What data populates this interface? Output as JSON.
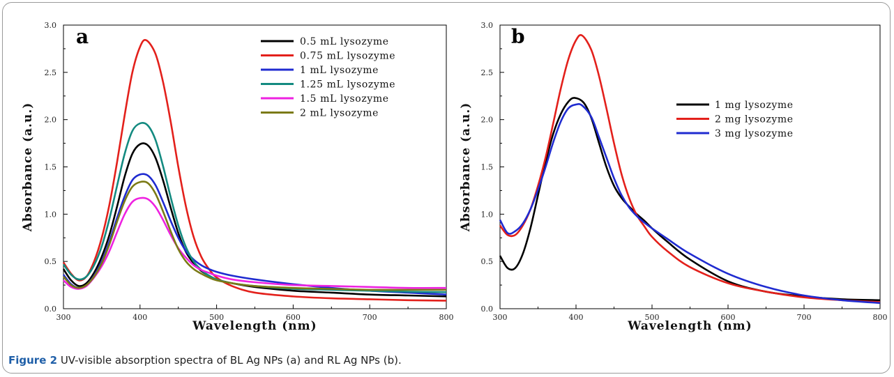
{
  "caption": {
    "label": "Figure 2",
    "text": " UV-visible absorption spectra of BL Ag NPs (a) and RL Ag NPs (b)."
  },
  "chart_data": [
    {
      "type": "line",
      "panel_label": "a",
      "xlabel": "Wavelength (nm)",
      "ylabel": "Absorbance (a.u.)",
      "xlim": [
        300,
        800
      ],
      "ylim": [
        0,
        3.0
      ],
      "xticks": [
        300,
        400,
        500,
        600,
        700,
        800
      ],
      "yticks": [
        0.0,
        0.5,
        1.0,
        1.5,
        2.0,
        2.5,
        3.0
      ],
      "legend_position": "top-right",
      "series": [
        {
          "name": "0.5 mL lysozyme",
          "color": "#000000",
          "x": [
            300,
            310,
            320,
            330,
            340,
            350,
            360,
            370,
            380,
            390,
            400,
            410,
            420,
            430,
            440,
            450,
            460,
            470,
            480,
            490,
            500,
            520,
            550,
            600,
            650,
            700,
            750,
            800
          ],
          "y": [
            0.42,
            0.3,
            0.24,
            0.27,
            0.38,
            0.55,
            0.78,
            1.08,
            1.4,
            1.64,
            1.74,
            1.73,
            1.6,
            1.36,
            1.07,
            0.8,
            0.6,
            0.48,
            0.4,
            0.35,
            0.31,
            0.27,
            0.23,
            0.19,
            0.17,
            0.15,
            0.14,
            0.13
          ]
        },
        {
          "name": "0.75 mL lysozyme",
          "color": "#e3201b",
          "x": [
            300,
            310,
            320,
            330,
            340,
            350,
            360,
            370,
            380,
            390,
            400,
            408,
            420,
            430,
            440,
            450,
            460,
            470,
            480,
            490,
            500,
            520,
            550,
            600,
            650,
            700,
            750,
            800
          ],
          "y": [
            0.49,
            0.37,
            0.3,
            0.34,
            0.5,
            0.75,
            1.1,
            1.55,
            2.05,
            2.5,
            2.77,
            2.84,
            2.7,
            2.4,
            1.98,
            1.5,
            1.08,
            0.76,
            0.55,
            0.42,
            0.33,
            0.24,
            0.17,
            0.13,
            0.11,
            0.1,
            0.09,
            0.085
          ]
        },
        {
          "name": "1 mL lysozyme",
          "color": "#1f2bd0",
          "x": [
            300,
            310,
            320,
            330,
            340,
            350,
            360,
            370,
            380,
            390,
            400,
            410,
            420,
            430,
            440,
            450,
            460,
            470,
            480,
            490,
            500,
            520,
            550,
            600,
            650,
            700,
            750,
            800
          ],
          "y": [
            0.36,
            0.26,
            0.22,
            0.25,
            0.35,
            0.5,
            0.71,
            0.96,
            1.19,
            1.36,
            1.42,
            1.41,
            1.31,
            1.13,
            0.93,
            0.75,
            0.61,
            0.52,
            0.46,
            0.42,
            0.39,
            0.35,
            0.31,
            0.26,
            0.22,
            0.19,
            0.17,
            0.15
          ]
        },
        {
          "name": "1.25 mL lysozyme",
          "color": "#138a80",
          "x": [
            300,
            310,
            320,
            330,
            340,
            350,
            360,
            370,
            380,
            390,
            400,
            410,
            420,
            430,
            440,
            450,
            460,
            470,
            480,
            490,
            500,
            520,
            550,
            600,
            650,
            700,
            750,
            800
          ],
          "y": [
            0.47,
            0.36,
            0.31,
            0.34,
            0.46,
            0.66,
            0.95,
            1.3,
            1.64,
            1.88,
            1.96,
            1.94,
            1.79,
            1.51,
            1.18,
            0.88,
            0.65,
            0.5,
            0.41,
            0.35,
            0.31,
            0.27,
            0.24,
            0.21,
            0.2,
            0.19,
            0.18,
            0.175
          ]
        },
        {
          "name": "1.5 mL lysozyme",
          "color": "#ee22e0",
          "x": [
            300,
            310,
            320,
            330,
            340,
            350,
            360,
            370,
            380,
            390,
            400,
            410,
            420,
            430,
            440,
            450,
            460,
            470,
            480,
            490,
            500,
            520,
            550,
            600,
            650,
            700,
            750,
            800
          ],
          "y": [
            0.3,
            0.23,
            0.21,
            0.24,
            0.33,
            0.45,
            0.61,
            0.81,
            1.0,
            1.13,
            1.17,
            1.16,
            1.08,
            0.94,
            0.78,
            0.64,
            0.54,
            0.46,
            0.41,
            0.38,
            0.35,
            0.31,
            0.28,
            0.25,
            0.24,
            0.23,
            0.22,
            0.22
          ]
        },
        {
          "name": "2 mL lysozyme",
          "color": "#7b7a16",
          "x": [
            300,
            310,
            320,
            330,
            340,
            350,
            360,
            370,
            380,
            390,
            400,
            410,
            420,
            430,
            440,
            450,
            460,
            470,
            480,
            490,
            500,
            520,
            550,
            600,
            650,
            700,
            750,
            800
          ],
          "y": [
            0.34,
            0.25,
            0.22,
            0.25,
            0.34,
            0.48,
            0.68,
            0.92,
            1.14,
            1.29,
            1.34,
            1.33,
            1.22,
            1.03,
            0.82,
            0.63,
            0.5,
            0.42,
            0.37,
            0.33,
            0.3,
            0.27,
            0.24,
            0.22,
            0.21,
            0.2,
            0.2,
            0.2
          ]
        }
      ]
    },
    {
      "type": "line",
      "panel_label": "b",
      "xlabel": "Wavelength (nm)",
      "ylabel": "Absorbance (a.u.)",
      "xlim": [
        300,
        800
      ],
      "ylim": [
        0,
        3.0
      ],
      "xticks": [
        300,
        400,
        500,
        600,
        700,
        800
      ],
      "yticks": [
        0.0,
        0.5,
        1.0,
        1.5,
        2.0,
        2.5,
        3.0
      ],
      "legend_position": "top-right",
      "series": [
        {
          "name": "1 mg lysozyme",
          "color": "#000000",
          "x": [
            300,
            310,
            320,
            330,
            340,
            350,
            360,
            370,
            380,
            390,
            398,
            410,
            420,
            430,
            440,
            450,
            460,
            470,
            480,
            490,
            500,
            520,
            550,
            600,
            650,
            700,
            750,
            800
          ],
          "y": [
            0.56,
            0.43,
            0.43,
            0.58,
            0.85,
            1.2,
            1.55,
            1.85,
            2.06,
            2.19,
            2.23,
            2.18,
            2.02,
            1.76,
            1.5,
            1.3,
            1.17,
            1.08,
            1.0,
            0.93,
            0.85,
            0.71,
            0.52,
            0.29,
            0.18,
            0.13,
            0.1,
            0.09
          ]
        },
        {
          "name": "2 mg lysozyme",
          "color": "#e3201b",
          "x": [
            300,
            310,
            320,
            330,
            340,
            350,
            360,
            370,
            380,
            390,
            400,
            408,
            420,
            430,
            440,
            450,
            460,
            470,
            480,
            490,
            500,
            520,
            550,
            600,
            650,
            700,
            750,
            800
          ],
          "y": [
            0.88,
            0.78,
            0.78,
            0.88,
            1.05,
            1.3,
            1.6,
            1.96,
            2.33,
            2.64,
            2.84,
            2.89,
            2.74,
            2.47,
            2.12,
            1.75,
            1.42,
            1.17,
            0.99,
            0.87,
            0.76,
            0.61,
            0.44,
            0.27,
            0.18,
            0.12,
            0.09,
            0.07
          ]
        },
        {
          "name": "3 mg lysozyme",
          "color": "#1f2bd0",
          "x": [
            300,
            310,
            320,
            330,
            340,
            350,
            360,
            370,
            380,
            390,
            400,
            408,
            420,
            430,
            440,
            450,
            460,
            470,
            480,
            490,
            500,
            520,
            550,
            600,
            650,
            700,
            750,
            800
          ],
          "y": [
            0.94,
            0.8,
            0.82,
            0.9,
            1.05,
            1.26,
            1.5,
            1.76,
            1.98,
            2.12,
            2.16,
            2.15,
            2.03,
            1.82,
            1.6,
            1.38,
            1.2,
            1.07,
            0.98,
            0.91,
            0.85,
            0.74,
            0.58,
            0.37,
            0.23,
            0.14,
            0.09,
            0.06
          ]
        }
      ]
    }
  ]
}
